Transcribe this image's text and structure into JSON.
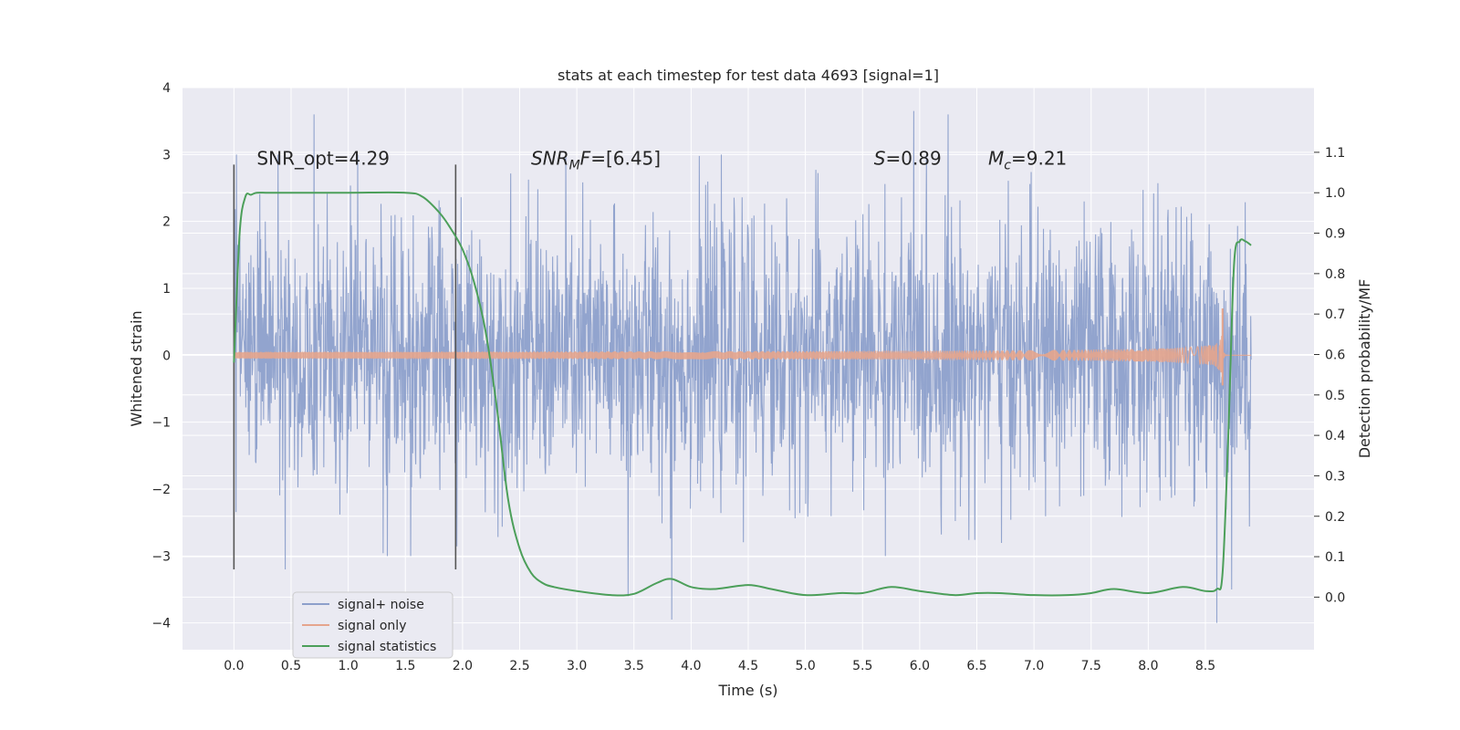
{
  "chart_data": {
    "type": "line",
    "title": "stats at each timestep for test data 4693 [signal=1]",
    "xlabel": "Time (s)",
    "ylabel": "Whitened strain",
    "y2label": "Detection probability/MF",
    "xlim": [
      -0.45,
      9.45
    ],
    "ylim": [
      -4.4,
      4.0
    ],
    "y2lim": [
      -0.13,
      1.26
    ],
    "xticks": [
      "0.0",
      "0.5",
      "1.0",
      "1.5",
      "2.0",
      "2.5",
      "3.0",
      "3.5",
      "4.0",
      "4.5",
      "5.0",
      "5.5",
      "6.0",
      "6.5",
      "7.0",
      "7.5",
      "8.0",
      "8.5"
    ],
    "yticks": [
      "−4",
      "−3",
      "−2",
      "−1",
      "0",
      "1",
      "2",
      "3",
      "4"
    ],
    "y2ticks": [
      "0.0",
      "0.1",
      "0.2",
      "0.3",
      "0.4",
      "0.5",
      "0.6",
      "0.7",
      "0.8",
      "0.9",
      "1.0",
      "1.1"
    ],
    "grid": true,
    "legend_position": "lower-left",
    "colors": {
      "signal_noise": "#8da0cb",
      "signal_only": "#e5a58d",
      "signal_statistics": "#4c9f5a",
      "background": "#eaeaf2",
      "grid": "#ffffff",
      "vline": "#555555"
    },
    "annotations": [
      {
        "name": "snr-opt",
        "text": "SNR_opt=4.29",
        "x": 0.2,
        "y": 2.85
      },
      {
        "name": "snr-mf",
        "text": "SNR_MF=[6.45]",
        "x": 2.6,
        "y": 2.85
      },
      {
        "name": "s-stat",
        "text": "S=0.89",
        "x": 5.6,
        "y": 2.85
      },
      {
        "name": "mc",
        "text": "M_c=9.21",
        "x": 6.6,
        "y": 2.85
      }
    ],
    "vlines": [
      {
        "x": 0.0,
        "ymin": -3.2,
        "ymax": 2.85
      },
      {
        "x": 1.94,
        "ymin": -3.2,
        "ymax": 2.85
      }
    ],
    "series": [
      {
        "name": "signal+ noise",
        "kind": "noise",
        "x_range": [
          0.0,
          8.9
        ],
        "amplitude_std": 1.0,
        "peaks": [
          [
            0.7,
            3.6
          ],
          [
            0.45,
            3.35
          ],
          [
            3.83,
            -3.95
          ],
          [
            5.95,
            3.65
          ],
          [
            6.25,
            3.6
          ],
          [
            8.6,
            -4.0
          ],
          [
            3.45,
            -3.6
          ],
          [
            0.45,
            -3.2
          ],
          [
            8.73,
            -3.5
          ]
        ]
      },
      {
        "name": "signal only",
        "kind": "chirp",
        "x_range": [
          0.0,
          8.9
        ],
        "merger_x": 8.65,
        "peak_value": 0.7
      },
      {
        "name": "signal statistics",
        "axis": "right",
        "x": [
          0.0,
          0.05,
          0.1,
          0.15,
          0.2,
          0.3,
          0.5,
          1.0,
          1.5,
          1.65,
          1.8,
          1.9,
          2.0,
          2.1,
          2.2,
          2.3,
          2.4,
          2.5,
          2.6,
          2.7,
          2.8,
          3.0,
          3.3,
          3.5,
          3.7,
          3.83,
          4.0,
          4.2,
          4.5,
          4.7,
          5.0,
          5.3,
          5.5,
          5.75,
          6.0,
          6.3,
          6.5,
          6.7,
          7.0,
          7.3,
          7.5,
          7.7,
          8.0,
          8.3,
          8.5,
          8.6,
          8.65,
          8.7,
          8.75,
          8.8,
          8.85,
          8.9
        ],
        "y": [
          0.58,
          0.9,
          0.99,
          0.995,
          1.0,
          1.0,
          1.0,
          1.0,
          1.0,
          0.99,
          0.95,
          0.91,
          0.86,
          0.78,
          0.66,
          0.47,
          0.24,
          0.12,
          0.06,
          0.035,
          0.025,
          0.015,
          0.005,
          0.008,
          0.035,
          0.045,
          0.025,
          0.02,
          0.03,
          0.02,
          0.005,
          0.01,
          0.01,
          0.025,
          0.015,
          0.005,
          0.01,
          0.01,
          0.005,
          0.005,
          0.01,
          0.02,
          0.01,
          0.025,
          0.015,
          0.02,
          0.06,
          0.4,
          0.82,
          0.88,
          0.88,
          0.87
        ]
      }
    ]
  }
}
